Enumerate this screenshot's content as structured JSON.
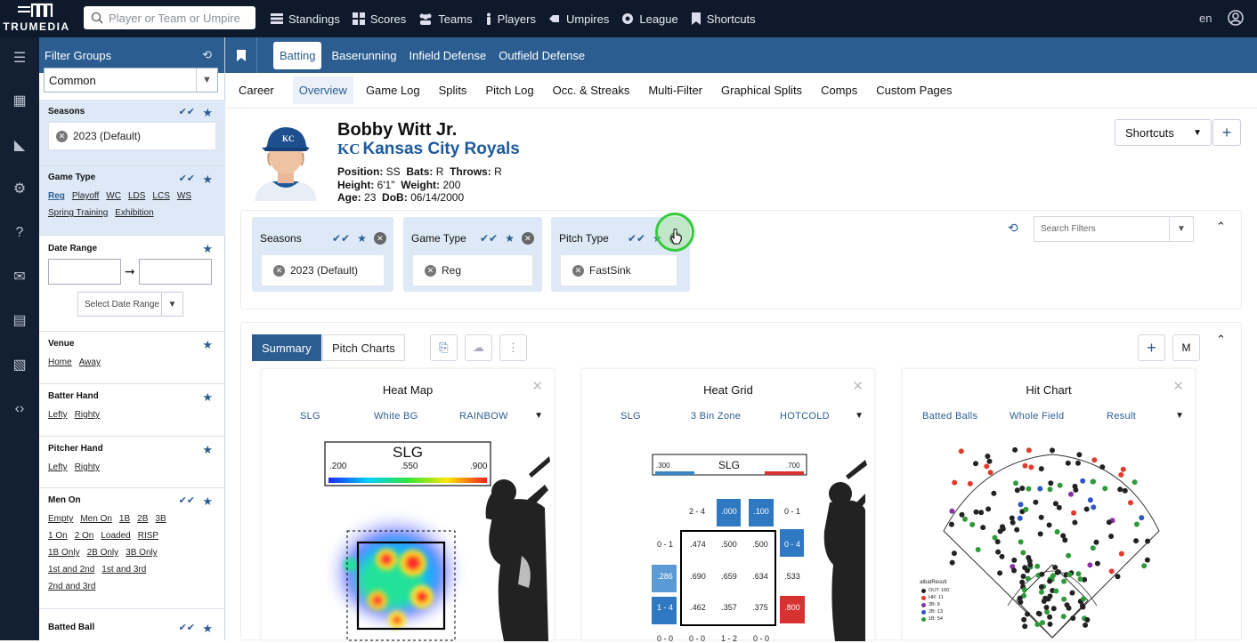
{
  "app": {
    "logo_text": "TRUMEDIA"
  },
  "search": {
    "placeholder": "Player or Team or Umpire"
  },
  "nav": [
    "Standings",
    "Scores",
    "Teams",
    "Players",
    "Umpires",
    "League",
    "Shortcuts"
  ],
  "lang": "en",
  "filter_panel": {
    "title": "Filter Groups",
    "group_select": "Common",
    "sections": {
      "seasons": {
        "title": "Seasons",
        "chip": "2023 (Default)"
      },
      "game_type": {
        "title": "Game Type",
        "options": [
          "Reg",
          "Playoff",
          "WC",
          "LDS",
          "LCS",
          "WS",
          "Spring Training",
          "Exhibition"
        ]
      },
      "date_range": {
        "title": "Date Range",
        "select": "Select Date Range"
      },
      "venue": {
        "title": "Venue",
        "options": [
          "Home",
          "Away"
        ]
      },
      "batter_hand": {
        "title": "Batter Hand",
        "options": [
          "Lefty",
          "Righty"
        ]
      },
      "pitcher_hand": {
        "title": "Pitcher Hand",
        "options": [
          "Lefty",
          "Righty"
        ]
      },
      "men_on": {
        "title": "Men On",
        "options": [
          "Empty",
          "Men On",
          "1B",
          "2B",
          "3B",
          "1 On",
          "2 On",
          "Loaded",
          "RISP",
          "1B Only",
          "2B Only",
          "3B Only",
          "1st and 2nd",
          "1st and 3rd",
          "2nd and 3rd"
        ]
      },
      "batted_ball": {
        "title": "Batted Ball"
      }
    }
  },
  "tabs_primary": [
    "Batting",
    "Baserunning",
    "Infield Defense",
    "Outfield Defense"
  ],
  "tabs_secondary": [
    "Career",
    "Overview",
    "Game Log",
    "Splits",
    "Pitch Log",
    "Occ. & Streaks",
    "Multi-Filter",
    "Graphical Splits",
    "Comps",
    "Custom Pages"
  ],
  "player": {
    "name": "Bobby Witt Jr.",
    "team": "Kansas City Royals",
    "team_logo": "KC",
    "labels": {
      "position": "Position:",
      "bats": "Bats:",
      "throws": "Throws:",
      "height": "Height:",
      "weight": "Weight:",
      "age": "Age:",
      "dob": "DoB:"
    },
    "position": "SS",
    "bats": "R",
    "throws": "R",
    "height": "6'1\"",
    "weight": "200",
    "age": "23",
    "dob": "06/14/2000"
  },
  "shortcuts_btn": "Shortcuts",
  "active_filters": [
    {
      "title": "Seasons",
      "chip": "2023 (Default)"
    },
    {
      "title": "Game Type",
      "chip": "Reg"
    },
    {
      "title": "Pitch Type",
      "chip": "FastSink"
    }
  ],
  "search_filters": {
    "placeholder": "Search Filters"
  },
  "view_tabs": [
    "Summary",
    "Pitch Charts"
  ],
  "m_button": "M",
  "cards": [
    {
      "title": "Heat Map",
      "options": [
        "SLG",
        "White BG",
        "RAINBOW"
      ],
      "legend_title": "SLG",
      "legend_ticks": [
        ".200",
        ".550",
        ".900"
      ]
    },
    {
      "title": "Heat Grid",
      "options": [
        "SLG",
        "3 Bin Zone",
        "HOTCOLD"
      ],
      "legend_title": "SLG",
      "legend_ticks": [
        ".300",
        ".700"
      ],
      "top_row": {
        "label_left": "2 - 4",
        "cells": [
          ".000",
          ".100"
        ],
        "label_right": "0 - 1"
      },
      "grid": [
        {
          "left": "0 - 1",
          "vals": [
            ".474",
            ".500",
            ".500"
          ],
          "right": "0 - 4"
        },
        {
          "left": ".286",
          "vals": [
            ".690",
            ".659",
            ".634"
          ],
          "right": ".533"
        },
        {
          "left": "1 - 4",
          "vals": [
            ".462",
            ".357",
            ".375"
          ],
          "right": ".800"
        }
      ],
      "bottom_row": [
        "0 - 0",
        "0 - 0",
        "1 - 2",
        "0 - 0"
      ]
    },
    {
      "title": "Hit Chart",
      "options": [
        "Batted Balls",
        "Whole Field",
        "Result"
      ],
      "legend_title": "atbatResult",
      "legend": [
        {
          "label": "OUT: 160",
          "color": "#222222"
        },
        {
          "label": "HR: 11",
          "color": "#e23b2e"
        },
        {
          "label": "3B: 8",
          "color": "#8b2fa8"
        },
        {
          "label": "2B: 13",
          "color": "#2f56c4"
        },
        {
          "label": "1B: 54",
          "color": "#2f9a3a"
        }
      ]
    }
  ],
  "colors": {
    "accent": "#2b5d91",
    "topbar": "#0e1a2b",
    "rail": "#132033",
    "filter_highlight": "#dde9f6"
  }
}
